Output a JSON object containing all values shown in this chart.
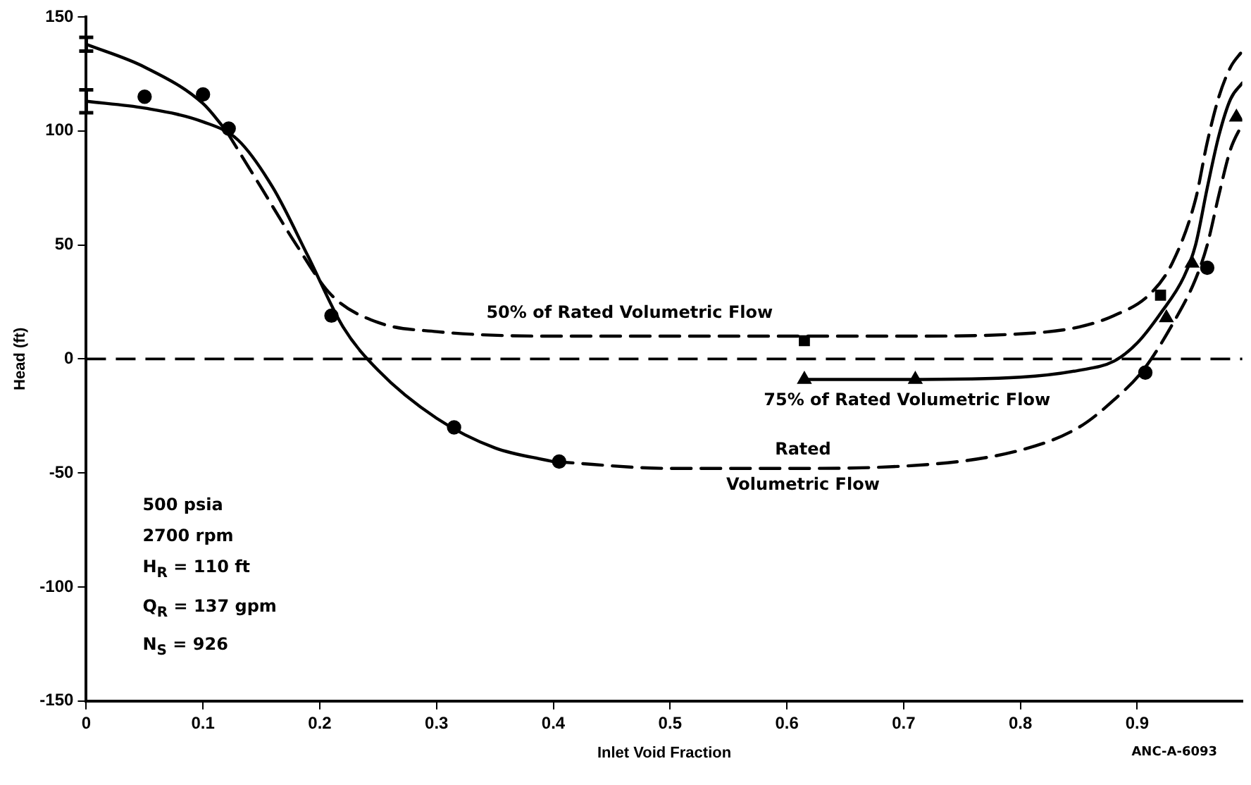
{
  "chart_data": {
    "type": "line",
    "xlabel": "Inlet Void Fraction",
    "ylabel": "Head (ft)",
    "xlim": [
      0,
      0.99
    ],
    "ylim": [
      -150,
      150
    ],
    "xticks": [
      {
        "value": 0,
        "label": "0"
      },
      0.1,
      0.2,
      0.3,
      0.4,
      0.5,
      0.6,
      0.7,
      0.8,
      0.9
    ],
    "yticks": [
      -150,
      -100,
      -50,
      0,
      50,
      100,
      150
    ],
    "grid": false,
    "legend": false,
    "series": [
      {
        "color": "#000000",
        "line_style": "solid",
        "x": [
          0,
          0.05,
          0.1,
          0.12
        ],
        "values": [
          138,
          128,
          112,
          100
        ],
        "errors": [
          [
            135,
            141
          ],
          null,
          null,
          null
        ]
      },
      {
        "name": "50% of Rated Volumetric Flow",
        "color": "#000000",
        "line_style": "dashed",
        "x": [
          0.12,
          0.15,
          0.18,
          0.21,
          0.25,
          0.3,
          0.4,
          0.5,
          0.6,
          0.7,
          0.8,
          0.85,
          0.88,
          0.91,
          0.93,
          0.95,
          0.96,
          0.97,
          0.98,
          0.99
        ],
        "values": [
          100,
          75,
          50,
          28,
          16,
          12,
          10,
          10,
          10,
          10,
          11,
          14,
          19,
          28,
          42,
          70,
          95,
          115,
          128,
          135
        ]
      },
      {
        "color": "#000000",
        "line_style": "solid",
        "x": [
          0,
          0.05,
          0.1,
          0.13,
          0.16,
          0.19,
          0.22,
          0.25,
          0.3,
          0.35,
          0.4
        ],
        "values": [
          113,
          110,
          104,
          96,
          75,
          45,
          14,
          -5,
          -26,
          -39,
          -45
        ],
        "errors": [
          [
            108,
            118
          ],
          null,
          null,
          null,
          null,
          null,
          null,
          null,
          null,
          null,
          null
        ]
      },
      {
        "name": "Rated Volumetric Flow",
        "color": "#000000",
        "line_style": "dashed",
        "x": [
          0.4,
          0.5,
          0.6,
          0.7,
          0.8,
          0.85,
          0.88,
          0.905,
          0.93,
          0.95,
          0.96,
          0.97,
          0.98,
          0.99
        ],
        "values": [
          -45,
          -48,
          -48,
          -47,
          -40,
          -30,
          -18,
          -5,
          15,
          35,
          50,
          72,
          92,
          103
        ]
      },
      {
        "name": "75% of Rated Volumetric Flow",
        "color": "#000000",
        "line_style": "solid",
        "x": [
          0.615,
          0.7,
          0.8,
          0.85,
          0.88,
          0.9,
          0.92,
          0.94,
          0.95,
          0.96,
          0.97,
          0.98,
          0.99
        ],
        "values": [
          -9,
          -9,
          -8,
          -5,
          -1,
          7,
          20,
          36,
          50,
          75,
          98,
          114,
          121
        ]
      },
      {
        "type": "scatter",
        "color": "#000000",
        "marker": "circle",
        "x": [
          0.05,
          0.1,
          0.122,
          0.21,
          0.315,
          0.405,
          0.907,
          0.96
        ],
        "values": [
          115,
          116,
          101,
          19,
          -30,
          -45,
          -6,
          40
        ]
      },
      {
        "type": "scatter",
        "color": "#000000",
        "marker": "square",
        "x": [
          0.615,
          0.92
        ],
        "values": [
          8,
          28
        ]
      },
      {
        "type": "scatter",
        "color": "#000000",
        "marker": "triangle",
        "x": [
          0.615,
          0.71,
          0.925,
          0.947,
          0.985
        ],
        "values": [
          -9,
          -9,
          18,
          42,
          106
        ]
      }
    ],
    "ref_lines": [
      {
        "axis": "y",
        "value": 0,
        "line_style": "dashed",
        "color": "#000000"
      }
    ],
    "annotations": [
      "500 psia",
      "2700 rpm",
      "H$_{R}$ = 110 ft",
      "Q$_{R}$ = 137 gpm",
      "N$_{S}$ = 926",
      "ANC-A-6093"
    ]
  }
}
